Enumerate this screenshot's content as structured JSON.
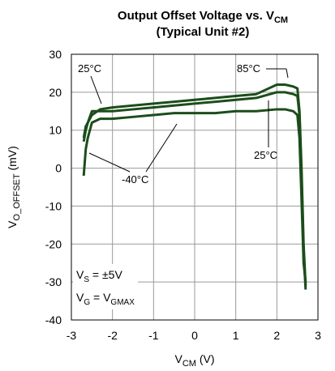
{
  "chart_data": {
    "type": "line",
    "title": [
      "Output Offset Voltage vs. V",
      "CM"
    ],
    "subtitle": "(Typical Unit #2)",
    "x_label": [
      "V",
      "CM",
      " (V)"
    ],
    "y_label": [
      "V",
      "O_OFFSET",
      " (mV)"
    ],
    "annotations": [
      "25°C",
      "85°C",
      "25°C",
      "-40°C"
    ],
    "conditions": [
      [
        "V",
        "S",
        " = ±5V"
      ],
      [
        "V",
        "G",
        " = V",
        "GMAX"
      ]
    ],
    "x": [
      -2.7,
      -2.65,
      -2.6,
      -2.5,
      -2.3,
      -2,
      -1.5,
      -1,
      -0.5,
      0,
      0.5,
      1,
      1.5,
      2,
      2.2,
      2.4,
      2.5,
      2.55,
      2.6,
      2.65,
      2.7
    ],
    "series": [
      {
        "name": "85°C",
        "color": "#1b4d1b",
        "values": [
          8,
          11,
          12,
          14,
          15.5,
          16,
          16.5,
          17,
          17.5,
          18,
          18.5,
          19,
          19.5,
          22,
          22,
          21.5,
          21,
          15,
          0,
          -20,
          -31
        ]
      },
      {
        "name": "25°C",
        "color": "#1b4d1b",
        "values": [
          7,
          10,
          12,
          15,
          15,
          15,
          15.5,
          16,
          16.5,
          17,
          17.5,
          18,
          18.5,
          20,
          20,
          19.5,
          19,
          14,
          -2,
          -22,
          -32
        ]
      },
      {
        "name": "-40°C",
        "color": "#1b4d1b",
        "values": [
          -2,
          5,
          8,
          12,
          13,
          13,
          13.5,
          14,
          14.5,
          14.5,
          14.5,
          15,
          15,
          15.5,
          15.5,
          15,
          14,
          8,
          -8,
          -25,
          -30
        ]
      }
    ],
    "xlim": [
      -3,
      3
    ],
    "xticks": [
      -3,
      -2,
      -1,
      0,
      1,
      2,
      3
    ],
    "ylim": [
      -40,
      30
    ],
    "yticks": [
      -40,
      -30,
      -20,
      -10,
      0,
      10,
      20,
      30
    ],
    "grid": true
  }
}
